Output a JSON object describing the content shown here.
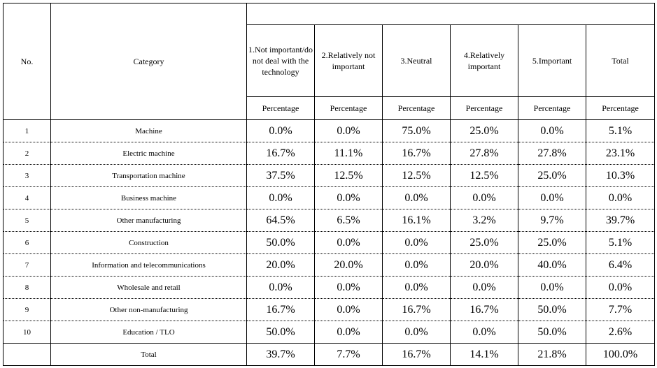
{
  "headers": {
    "no": "No.",
    "category": "Category",
    "columns": [
      "1.Not important/do not deal with the technology",
      "2.Relatively not important",
      "3.Neutral",
      "4.Relatively important",
      "5.Important",
      "Total"
    ],
    "sub": "Percentage"
  },
  "rows": [
    {
      "no": "1",
      "category": "Machine",
      "values": [
        "0.0%",
        "0.0%",
        "75.0%",
        "25.0%",
        "0.0%",
        "5.1%"
      ]
    },
    {
      "no": "2",
      "category": "Electric machine",
      "values": [
        "16.7%",
        "11.1%",
        "16.7%",
        "27.8%",
        "27.8%",
        "23.1%"
      ]
    },
    {
      "no": "3",
      "category": "Transportation machine",
      "values": [
        "37.5%",
        "12.5%",
        "12.5%",
        "12.5%",
        "25.0%",
        "10.3%"
      ]
    },
    {
      "no": "4",
      "category": "Business machine",
      "values": [
        "0.0%",
        "0.0%",
        "0.0%",
        "0.0%",
        "0.0%",
        "0.0%"
      ]
    },
    {
      "no": "5",
      "category": "Other manufacturing",
      "values": [
        "64.5%",
        "6.5%",
        "16.1%",
        "3.2%",
        "9.7%",
        "39.7%"
      ]
    },
    {
      "no": "6",
      "category": "Construction",
      "values": [
        "50.0%",
        "0.0%",
        "0.0%",
        "25.0%",
        "25.0%",
        "5.1%"
      ]
    },
    {
      "no": "7",
      "category": "Information and telecommunications",
      "values": [
        "20.0%",
        "20.0%",
        "0.0%",
        "20.0%",
        "40.0%",
        "6.4%"
      ]
    },
    {
      "no": "8",
      "category": "Wholesale and retail",
      "values": [
        "0.0%",
        "0.0%",
        "0.0%",
        "0.0%",
        "0.0%",
        "0.0%"
      ]
    },
    {
      "no": "9",
      "category": "Other non-manufacturing",
      "values": [
        "16.7%",
        "0.0%",
        "16.7%",
        "16.7%",
        "50.0%",
        "7.7%"
      ]
    },
    {
      "no": "10",
      "category": "Education / TLO",
      "values": [
        "50.0%",
        "0.0%",
        "0.0%",
        "0.0%",
        "50.0%",
        "2.6%"
      ]
    }
  ],
  "total": {
    "label": "Total",
    "values": [
      "39.7%",
      "7.7%",
      "16.7%",
      "14.1%",
      "21.8%",
      "100.0%"
    ]
  }
}
